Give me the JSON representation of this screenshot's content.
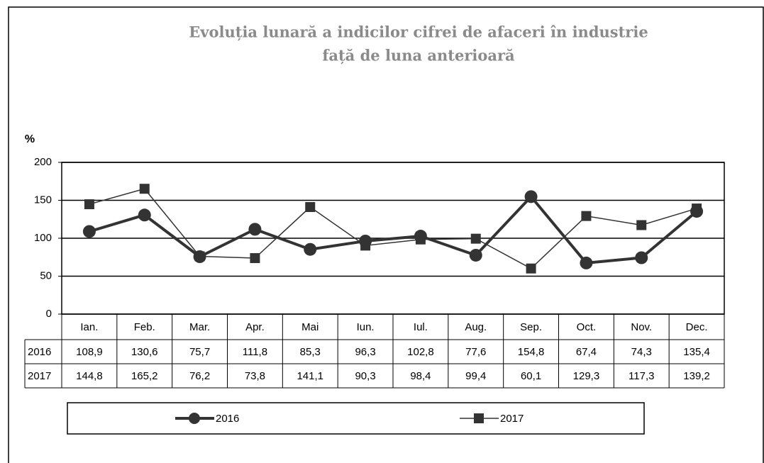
{
  "chart_data": {
    "type": "line",
    "title": [
      "Evoluția lunară a indicilor cifrei de afaceri în industrie",
      "față de luna anterioară"
    ],
    "y_label": "%",
    "categories": [
      "Ian.",
      "Feb.",
      "Mar.",
      "Apr.",
      "Mai",
      "Iun.",
      "Iul.",
      "Aug.",
      "Sep.",
      "Oct.",
      "Nov.",
      "Dec."
    ],
    "series": [
      {
        "name": "2016",
        "color": "#333333",
        "marker": "circle",
        "values": [
          108.9,
          130.6,
          75.7,
          111.8,
          85.3,
          96.3,
          102.8,
          77.6,
          154.8,
          67.4,
          74.3,
          135.4
        ],
        "value_labels": [
          "108,9",
          "130,6",
          "75,7",
          "111,8",
          "85,3",
          "96,3",
          "102,8",
          "77,6",
          "154,8",
          "67,4",
          "74,3",
          "135,4"
        ]
      },
      {
        "name": "2017",
        "color": "#333333",
        "marker": "square",
        "values": [
          144.8,
          165.2,
          76.2,
          73.8,
          141.1,
          90.3,
          98.4,
          99.4,
          60.1,
          129.3,
          117.3,
          139.2
        ],
        "value_labels": [
          "144,8",
          "165,2",
          "76,2",
          "73,8",
          "141,1",
          "90,3",
          "98,4",
          "99,4",
          "60,1",
          "129,3",
          "117,3",
          "139,2"
        ]
      }
    ],
    "ylim": [
      0,
      200
    ],
    "yticks": [
      0,
      50,
      100,
      150,
      200
    ],
    "grid": true
  }
}
